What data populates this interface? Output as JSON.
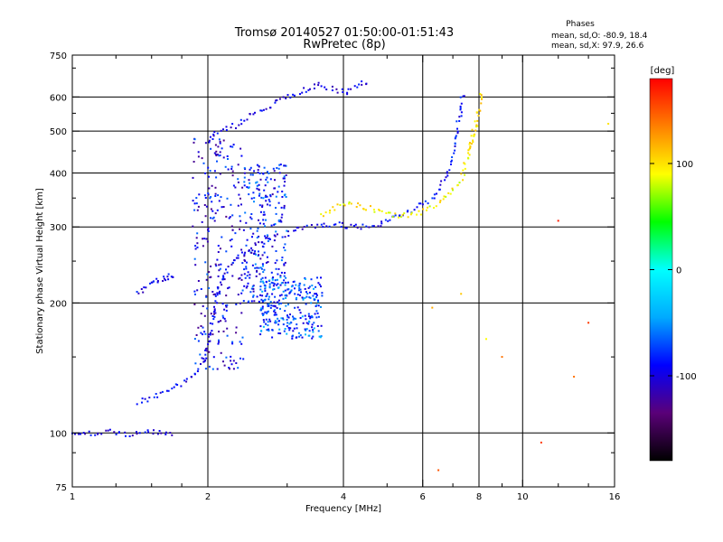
{
  "header": {
    "title_line1": "Tromsø 20140527 01:50:00-01:51:43",
    "title_line2": "RwPretec (8p)"
  },
  "stats": {
    "heading": "Phases",
    "line_o": "mean, sd,O: -80.9, 18.4",
    "line_x": "mean, sd,X:  97.9, 26.6"
  },
  "colorbar": {
    "label": "[deg]",
    "ticks": [
      {
        "value": 100,
        "label": "100"
      },
      {
        "value": 0,
        "label": "0"
      },
      {
        "value": -100,
        "label": "-100"
      }
    ],
    "range": [
      -180,
      180
    ],
    "stops": [
      "#000000",
      "#5a0078",
      "#0000ff",
      "#00aaff",
      "#00ffff",
      "#00ff00",
      "#ffff00",
      "#ff8000",
      "#ff0000"
    ]
  },
  "chart_data": {
    "type": "scatter",
    "title": "Tromsø 20140527 01:50:00-01:51:43",
    "subtitle": "RwPretec (8p)",
    "xlabel": "Frequency [MHz]",
    "ylabel": "Stationary phase Virtual Height [km]",
    "xscale": "log",
    "yscale": "log",
    "xlim": [
      1,
      16
    ],
    "ylim": [
      75,
      750
    ],
    "xticks": [
      1,
      2,
      4,
      6,
      8,
      10,
      16
    ],
    "yticks": [
      75,
      100,
      200,
      300,
      400,
      500,
      600,
      750
    ],
    "grid_x": [
      2,
      4,
      6,
      8,
      10
    ],
    "grid_y": [
      100,
      200,
      300,
      400,
      500,
      600
    ],
    "color_variable": "phase [deg]",
    "traces": [
      {
        "group": "O",
        "phase": -100,
        "x": [
          1.0,
          1.05,
          1.1,
          1.2,
          1.3,
          1.4,
          1.5,
          1.6,
          1.7
        ],
        "y": [
          100,
          99,
          100,
          101,
          99,
          100,
          101,
          100,
          99
        ]
      },
      {
        "group": "O",
        "phase": -95,
        "x": [
          1.4,
          1.55,
          1.7,
          1.85,
          1.95,
          2.0,
          2.05,
          2.1,
          2.2,
          2.4,
          2.6,
          2.8,
          3.0,
          3.2,
          3.4,
          3.6,
          3.8,
          4.0,
          4.2,
          4.5,
          4.8
        ],
        "y": [
          118,
          122,
          128,
          135,
          145,
          160,
          180,
          210,
          240,
          262,
          275,
          283,
          290,
          296,
          300,
          303,
          304,
          302,
          300,
          302,
          305
        ]
      },
      {
        "group": "O",
        "phase": -90,
        "x": [
          4.8,
          5.0,
          5.3,
          5.6,
          5.9,
          6.2,
          6.5,
          6.8,
          7.0,
          7.2,
          7.4
        ],
        "y": [
          305,
          310,
          318,
          326,
          335,
          345,
          365,
          400,
          450,
          520,
          620
        ]
      },
      {
        "group": "O",
        "phase": -100,
        "x": [
          2.0,
          2.1,
          2.3,
          2.5,
          2.7,
          2.9,
          3.1,
          3.3,
          3.5,
          3.7,
          3.9,
          4.1,
          4.3,
          4.6
        ],
        "y": [
          470,
          500,
          515,
          545,
          565,
          590,
          610,
          625,
          640,
          630,
          618,
          612,
          640,
          655
        ]
      },
      {
        "group": "O",
        "phase": -95,
        "x": [
          1.4,
          1.45,
          1.5,
          1.55,
          1.6,
          1.65,
          1.7
        ],
        "y": [
          210,
          218,
          222,
          226,
          228,
          230,
          232
        ]
      },
      {
        "group": "X",
        "phase": 95,
        "x": [
          3.6,
          3.8,
          4.0,
          4.2,
          4.4,
          4.7,
          5.0,
          5.4,
          5.8,
          6.2,
          6.6,
          7.0,
          7.3,
          7.6,
          7.9
        ],
        "y": [
          318,
          330,
          338,
          340,
          335,
          328,
          322,
          318,
          320,
          330,
          345,
          365,
          390,
          440,
          520
        ]
      },
      {
        "group": "X",
        "phase": 100,
        "x": [
          7.6,
          7.8,
          8.0,
          8.1
        ],
        "y": [
          450,
          500,
          560,
          620
        ]
      }
    ],
    "scatter_regions": [
      {
        "x": [
          1.85,
          2.4
        ],
        "y": [
          140,
          480
        ],
        "phase": -95
      },
      {
        "x": [
          2.4,
          3.0
        ],
        "y": [
          200,
          420
        ],
        "phase": -85
      },
      {
        "x": [
          2.6,
          3.6
        ],
        "y": [
          165,
          230
        ],
        "phase": -70
      }
    ],
    "isolated_points": [
      {
        "x": 6.3,
        "y": 195,
        "phase": 120
      },
      {
        "x": 6.5,
        "y": 82,
        "phase": 150
      },
      {
        "x": 7.3,
        "y": 210,
        "phase": 110
      },
      {
        "x": 8.3,
        "y": 165,
        "phase": 90
      },
      {
        "x": 9.0,
        "y": 150,
        "phase": 140
      },
      {
        "x": 11.0,
        "y": 95,
        "phase": 160
      },
      {
        "x": 12.0,
        "y": 310,
        "phase": 170
      },
      {
        "x": 13.0,
        "y": 135,
        "phase": 140
      },
      {
        "x": 14.0,
        "y": 180,
        "phase": 160
      },
      {
        "x": 15.5,
        "y": 520,
        "phase": 100
      }
    ]
  }
}
